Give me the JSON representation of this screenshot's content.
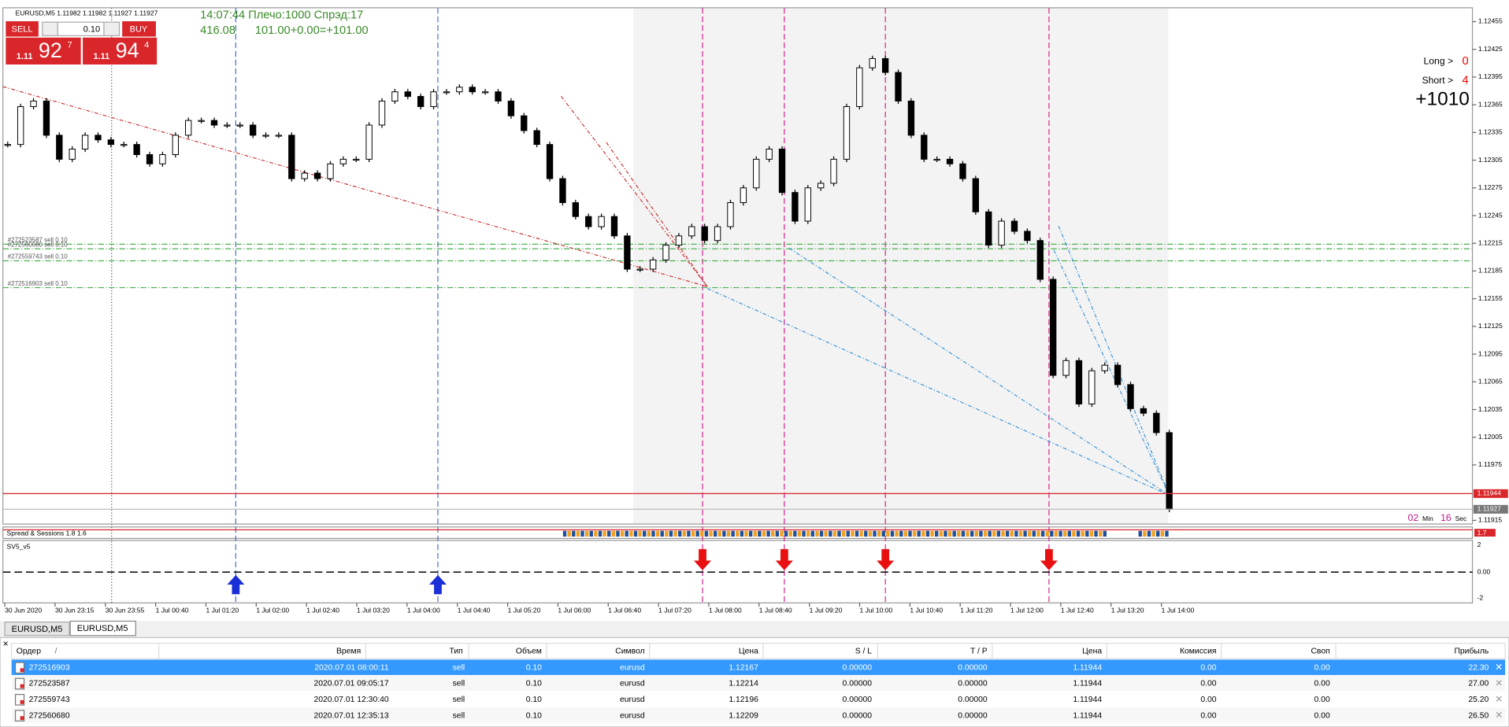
{
  "header": {
    "symbol_info": "EURUSD,M5  1.11982 1.11982 1.11927 1.11927"
  },
  "trade_panel": {
    "sell": "SELL",
    "buy": "BUY",
    "lot": "0.10",
    "bid_big": "1.11",
    "bid_digits": "92",
    "bid_point": "7",
    "ask_big": "1.11",
    "ask_digits": "94",
    "ask_point": "4"
  },
  "info": {
    "line1": "14:07:44 Плечо:1000 Спрэд:17",
    "line2": "416.08",
    "line3": "101.00+0.00=+101.00"
  },
  "stats": {
    "long_label": "Long >",
    "long_value": "0",
    "short_label": "Short >",
    "short_value": "4",
    "total": "+1010"
  },
  "timer": {
    "minutes": "02",
    "min_label": "Min",
    "seconds": "16",
    "sec_label": "Sec"
  },
  "chart_data": {
    "type": "candlestick",
    "values": [
      1.12322,
      1.12363,
      1.12369,
      1.12332,
      1.12306,
      1.12317,
      1.12332,
      1.12327,
      1.12322,
      1.12322,
      1.12311,
      1.12301,
      1.12311,
      1.12332,
      1.12348,
      1.12348,
      1.12343,
      1.12343,
      1.12343,
      1.12332,
      1.12332,
      1.12332,
      1.12285,
      1.12291,
      1.12285,
      1.12301,
      1.12306,
      1.12306,
      1.12343,
      1.12369,
      1.12379,
      1.12374,
      1.12363,
      1.12379,
      1.12379,
      1.12384,
      1.12379,
      1.12379,
      1.12369,
      1.12353,
      1.12337,
      1.12322,
      1.12285,
      1.12259,
      1.12244,
      1.12233,
      1.12244,
      1.12223,
      1.12187,
      1.12187,
      1.12197,
      1.12213,
      1.12223,
      1.12233,
      1.12218,
      1.12233,
      1.12259,
      1.12275,
      1.12306,
      1.12317,
      1.1227,
      1.12239,
      1.12275,
      1.1228,
      1.12306,
      1.12363,
      1.12405,
      1.12415,
      1.124,
      1.12369,
      1.12332,
      1.12306,
      1.12306,
      1.12301,
      1.12285,
      1.12249,
      1.12213,
      1.12239,
      1.12228,
      1.12218,
      1.12176,
      1.12072,
      1.12088,
      1.12041,
      1.12077,
      1.12083,
      1.12062,
      1.12036,
      1.12031,
      1.1201,
      1.11927
    ],
    "ylim": [
      1.11911,
      1.1247
    ],
    "yticks": [
      1.12455,
      1.12425,
      1.12395,
      1.12365,
      1.12335,
      1.12305,
      1.12275,
      1.12245,
      1.12215,
      1.12185,
      1.12155,
      1.12125,
      1.12095,
      1.12065,
      1.12035,
      1.12005,
      1.11975,
      1.11915
    ],
    "x_labels": [
      "30 Jun 2020",
      "30 Jun 23:15",
      "30 Jun 23:55",
      "1 Jul 00:40",
      "1 Jul 01:20",
      "1 Jul 02:00",
      "1 Jul 02:40",
      "1 Jul 03:20",
      "1 Jul 04:00",
      "1 Jul 04:40",
      "1 Jul 05:20",
      "1 Jul 06:00",
      "1 Jul 06:40",
      "1 Jul 07:20",
      "1 Jul 08:00",
      "1 Jul 08:40",
      "1 Jul 09:20",
      "1 Jul 10:00",
      "1 Jul 10:40",
      "1 Jul 11:20",
      "1 Jul 12:00",
      "1 Jul 12:40",
      "1 Jul 13:20",
      "1 Jul 14:00"
    ],
    "order_lines": [
      {
        "label": "#272523587 sell 0.10",
        "value": 1.12214
      },
      {
        "label": "#272560680 sell 0.10",
        "value": 1.12209
      },
      {
        "label": "#272559743 sell 0.10",
        "value": 1.12196
      },
      {
        "label": "#272516903 sell 0.10",
        "value": 1.12167
      }
    ],
    "bid": 1.11944,
    "last": 1.11927
  },
  "indicator": {
    "spread_label": "Spread & Sessions 1.8 1.6",
    "spread_value": "1.7",
    "sv_label": "SV5_v5",
    "sv_ticks": [
      "2",
      "0.00",
      "-2"
    ]
  },
  "tabs": [
    "EURUSD,M5",
    "EURUSD,M5"
  ],
  "table": {
    "close": "×",
    "sort_indicator": "/",
    "columns": [
      "Ордер",
      "Время",
      "Тип",
      "Объем",
      "Символ",
      "Цена",
      "S / L",
      "T / P",
      "Цена",
      "Комиссия",
      "Своп",
      "Прибыль"
    ],
    "rows": [
      [
        "272516903",
        "2020.07.01 08:00:11",
        "sell",
        "0.10",
        "eurusd",
        "1.12167",
        "0.00000",
        "0.00000",
        "1.11944",
        "0.00",
        "0.00",
        "22.30"
      ],
      [
        "272523587",
        "2020.07.01 09:05:17",
        "sell",
        "0.10",
        "eurusd",
        "1.12214",
        "0.00000",
        "0.00000",
        "1.11944",
        "0.00",
        "0.00",
        "27.00"
      ],
      [
        "272559743",
        "2020.07.01 12:30:40",
        "sell",
        "0.10",
        "eurusd",
        "1.12196",
        "0.00000",
        "0.00000",
        "1.11944",
        "0.00",
        "0.00",
        "25.20"
      ],
      [
        "272560680",
        "2020.07.01 12:35:13",
        "sell",
        "0.10",
        "eurusd",
        "1.12209",
        "0.00000",
        "0.00000",
        "1.11944",
        "0.00",
        "0.00",
        "26.50"
      ]
    ]
  }
}
